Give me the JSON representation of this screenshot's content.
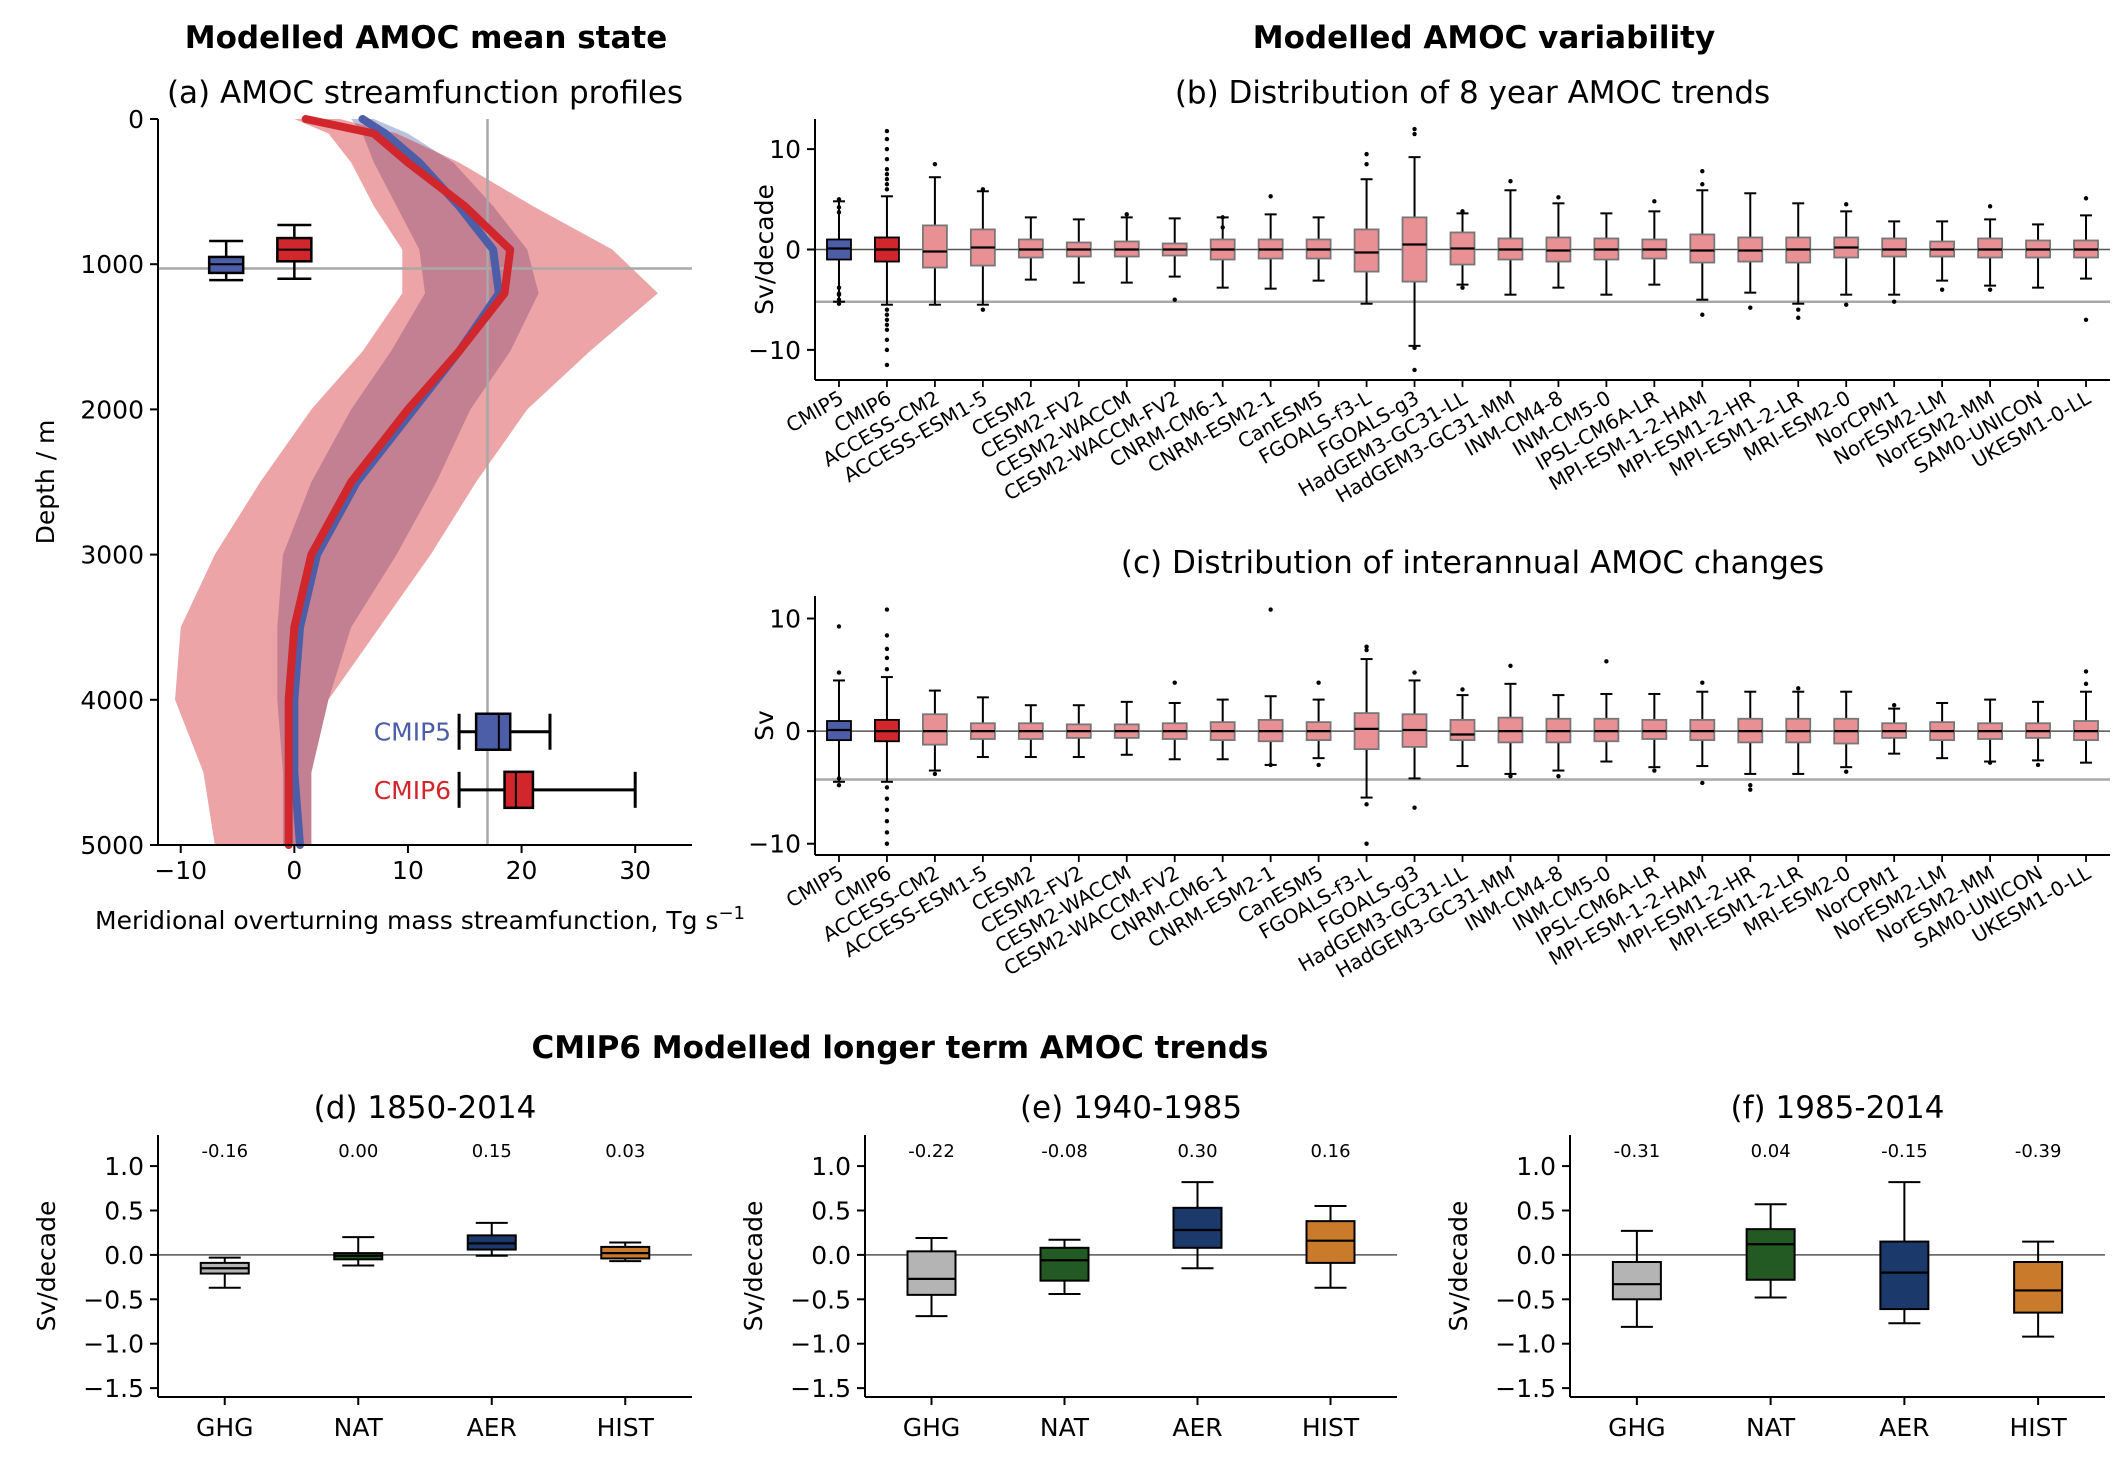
{
  "figure": {
    "heading_left": "Modelled AMOC mean state",
    "heading_right": "Modelled AMOC variability",
    "heading_bottom": "CMIP6 Modelled longer term AMOC trends"
  },
  "colors": {
    "cmip5": "#4c5ea8",
    "cmip6": "#d1262c",
    "model_box": "#e99095",
    "ghg": "#b4b4b4",
    "nat": "#235a24",
    "aer": "#1b3a6b",
    "hist": "#c97a2a"
  },
  "chart_data": [
    {
      "id": "a",
      "type": "line",
      "title": "(a) AMOC streamfunction profiles",
      "xlabel": "Meridional overturning mass streamfunction, Tg s",
      "xlabel_sup": "−1",
      "ylabel": "Depth / m",
      "xlim": [
        -12,
        35
      ],
      "ylim": [
        5000,
        0
      ],
      "xticks": [
        -10,
        0,
        10,
        20,
        30
      ],
      "yticks": [
        0,
        1000,
        2000,
        3000,
        4000,
        5000
      ],
      "reference_lines": {
        "x": 17,
        "y": 1030
      },
      "series": [
        {
          "name": "CMIP5",
          "depth": [
            0,
            100,
            300,
            600,
            900,
            1200,
            1600,
            2000,
            2500,
            3000,
            3500,
            4000,
            4500,
            5000
          ],
          "mean": [
            6,
            8,
            11,
            14.5,
            17.5,
            18,
            14.5,
            10.5,
            5.5,
            2,
            0.5,
            0,
            0,
            0.5
          ],
          "lower": [
            5,
            6,
            7,
            9,
            11,
            11.5,
            8.5,
            5,
            1.5,
            -1,
            -1.5,
            -1.5,
            -1,
            -1
          ],
          "upper": [
            7,
            10,
            14,
            17.5,
            20.5,
            21.5,
            19,
            15.5,
            12.5,
            9,
            5,
            3,
            1.5,
            1.5
          ]
        },
        {
          "name": "CMIP6",
          "depth": [
            0,
            100,
            300,
            600,
            900,
            1200,
            1600,
            2000,
            2500,
            3000,
            3500,
            4000,
            4500,
            5000
          ],
          "mean": [
            1,
            7,
            10,
            15,
            19,
            18.5,
            14.5,
            10,
            5,
            1.5,
            0,
            -0.5,
            -0.5,
            -0.5
          ],
          "lower": [
            0,
            3,
            5,
            7,
            9.5,
            9.5,
            6,
            1.5,
            -3,
            -7,
            -10,
            -10.5,
            -8,
            -7
          ],
          "upper": [
            4,
            9,
            14.5,
            21,
            28,
            32,
            26,
            20.5,
            16,
            12,
            7.5,
            3,
            1.5,
            1.5
          ]
        }
      ],
      "boxes_depth": [
        {
          "name": "CMIP5",
          "min": 840,
          "q1": 950,
          "median": 1000,
          "q3": 1060,
          "max": 1110,
          "x": -6
        },
        {
          "name": "CMIP6",
          "min": 730,
          "q1": 820,
          "median": 900,
          "q3": 980,
          "max": 1100,
          "x": 0
        }
      ],
      "boxes_strength": [
        {
          "name": "CMIP5",
          "min": 14.5,
          "q1": 16,
          "median": 18,
          "q3": 19,
          "max": 22.5,
          "depth": 4220
        },
        {
          "name": "CMIP6",
          "min": 14.5,
          "q1": 18.5,
          "median": 19.5,
          "q3": 21,
          "max": 30,
          "depth": 4620
        }
      ],
      "legend": [
        "CMIP5",
        "CMIP6"
      ]
    },
    {
      "id": "b",
      "type": "box",
      "title": "(b) Distribution of 8 year AMOC trends",
      "ylabel": "Sv/decade",
      "ylim": [
        -13,
        13
      ],
      "yticks": [
        -10,
        0,
        10
      ],
      "reference_line": -5.2,
      "categories": [
        "CMIP5",
        "CMIP6",
        "ACCESS-CM2",
        "ACCESS-ESM1-5",
        "CESM2",
        "CESM2-FV2",
        "CESM2-WACCM",
        "CESM2-WACCM-FV2",
        "CNRM-CM6-1",
        "CNRM-ESM2-1",
        "CanESM5",
        "FGOALS-f3-L",
        "FGOALS-g3",
        "HadGEM3-GC31-LL",
        "HadGEM3-GC31-MM",
        "INM-CM4-8",
        "INM-CM5-0",
        "IPSL-CM6A-LR",
        "MPI-ESM-1-2-HAM",
        "MPI-ESM1-2-HR",
        "MPI-ESM1-2-LR",
        "MRI-ESM2-0",
        "NorCPM1",
        "NorESM2-LM",
        "NorESM2-MM",
        "SAM0-UNICON",
        "UKESM1-0-LL"
      ],
      "q1": [
        -1.0,
        -1.2,
        -1.8,
        -1.6,
        -0.8,
        -0.7,
        -0.7,
        -0.6,
        -1.0,
        -0.9,
        -0.9,
        -2.2,
        -3.2,
        -1.5,
        -1.0,
        -1.2,
        -1.0,
        -0.9,
        -1.3,
        -1.2,
        -1.3,
        -0.8,
        -0.7,
        -0.7,
        -0.8,
        -0.8,
        -0.8
      ],
      "median": [
        0.1,
        0.0,
        -0.2,
        0.2,
        0.0,
        0.0,
        0.0,
        0.0,
        0.0,
        0.0,
        0.0,
        -0.3,
        0.5,
        0.1,
        0.0,
        -0.1,
        0.0,
        0.0,
        -0.1,
        -0.1,
        0.0,
        0.2,
        0.0,
        0.0,
        0.0,
        0.0,
        0.0
      ],
      "q3": [
        1.0,
        1.2,
        2.4,
        2.0,
        1.0,
        0.7,
        0.8,
        0.6,
        1.0,
        1.0,
        1.0,
        2.0,
        3.2,
        1.7,
        1.1,
        1.2,
        1.1,
        1.0,
        1.5,
        1.2,
        1.2,
        1.2,
        1.1,
        0.8,
        1.1,
        0.9,
        0.9
      ],
      "whislo": [
        -5.2,
        -5.5,
        -5.5,
        -5.5,
        -3.0,
        -3.3,
        -3.3,
        -2.7,
        -3.8,
        -3.9,
        -3.1,
        -5.4,
        -9.6,
        -3.5,
        -4.5,
        -3.8,
        -4.5,
        -3.5,
        -5.0,
        -4.3,
        -5.4,
        -4.5,
        -4.5,
        -3.1,
        -3.6,
        -3.8,
        -2.9
      ],
      "whishi": [
        4.8,
        5.3,
        7.2,
        5.8,
        3.2,
        3.0,
        3.2,
        3.1,
        3.2,
        3.5,
        3.2,
        7.0,
        9.2,
        3.6,
        5.9,
        4.6,
        3.6,
        3.8,
        5.9,
        5.6,
        4.6,
        3.8,
        2.8,
        2.8,
        3.0,
        2.5,
        3.4
      ],
      "outliers": [
        [
          -5.0,
          -4.4,
          -3.8,
          4.2,
          -4.5,
          5.0,
          -5.4,
          3.7
        ],
        [
          -6,
          -7,
          -8,
          -9,
          -10,
          -11.5,
          6,
          7,
          8,
          9,
          10,
          11,
          11.8,
          -6.5,
          6.5,
          -7.5,
          7.5
        ],
        [
          8.5
        ],
        [
          -6,
          6
        ],
        [],
        [],
        [
          3.5
        ],
        [
          -5
        ],
        [
          2.2,
          3.2
        ],
        [
          5.3
        ],
        [],
        [
          8.5,
          9.5
        ],
        [
          11.5,
          12,
          -9.8,
          -12
        ],
        [
          3.8,
          -3.8
        ],
        [
          6.8
        ],
        [
          5.2
        ],
        [],
        [
          4.8
        ],
        [
          7.8,
          6.5,
          -6.5
        ],
        [
          -5.8
        ],
        [
          -6,
          -6.8
        ],
        [
          4.5,
          -5.5
        ],
        [
          -5.2
        ],
        [
          -4
        ],
        [
          4.3,
          -4
        ],
        [],
        [
          5.1,
          -7
        ]
      ]
    },
    {
      "id": "c",
      "type": "box",
      "title": "(c) Distribution of interannual AMOC changes",
      "ylabel": "Sv",
      "ylim": [
        -11,
        12
      ],
      "yticks": [
        -10,
        0,
        10
      ],
      "reference_line": -4.3,
      "categories": [
        "CMIP5",
        "CMIP6",
        "ACCESS-CM2",
        "ACCESS-ESM1-5",
        "CESM2",
        "CESM2-FV2",
        "CESM2-WACCM",
        "CESM2-WACCM-FV2",
        "CNRM-CM6-1",
        "CNRM-ESM2-1",
        "CanESM5",
        "FGOALS-f3-L",
        "FGOALS-g3",
        "HadGEM3-GC31-LL",
        "HadGEM3-GC31-MM",
        "INM-CM4-8",
        "INM-CM5-0",
        "IPSL-CM6A-LR",
        "MPI-ESM-1-2-HAM",
        "MPI-ESM1-2-HR",
        "MPI-ESM1-2-LR",
        "MRI-ESM2-0",
        "NorCPM1",
        "NorESM2-LM",
        "NorESM2-MM",
        "SAM0-UNICON",
        "UKESM1-0-LL"
      ],
      "q1": [
        -0.8,
        -0.9,
        -1.2,
        -0.7,
        -0.7,
        -0.6,
        -0.6,
        -0.7,
        -0.8,
        -0.9,
        -0.8,
        -1.6,
        -1.4,
        -0.8,
        -1.0,
        -1.0,
        -0.9,
        -0.7,
        -0.8,
        -1.0,
        -1.0,
        -1.1,
        -0.6,
        -0.8,
        -0.7,
        -0.6,
        -0.8
      ],
      "median": [
        0.1,
        0.0,
        0.0,
        0.0,
        0.0,
        0.0,
        0.0,
        0.0,
        0.0,
        0.0,
        0.0,
        0.2,
        0.1,
        -0.3,
        0.0,
        0.0,
        0.0,
        0.0,
        0.0,
        0.0,
        0.0,
        0.0,
        0.0,
        0.0,
        0.0,
        0.0,
        0.0
      ],
      "q3": [
        0.9,
        1.0,
        1.5,
        0.7,
        0.7,
        0.6,
        0.6,
        0.7,
        0.8,
        1.0,
        0.8,
        1.6,
        1.5,
        1.0,
        1.2,
        1.1,
        1.1,
        1.0,
        1.0,
        1.1,
        1.1,
        1.1,
        0.7,
        0.8,
        0.7,
        0.7,
        0.9
      ],
      "whislo": [
        -4.5,
        -4.5,
        -3.5,
        -2.3,
        -2.3,
        -2.3,
        -2.1,
        -2.5,
        -2.5,
        -3.0,
        -2.4,
        -5.9,
        -4.2,
        -3.1,
        -3.8,
        -3.5,
        -2.7,
        -3.2,
        -3.1,
        -3.8,
        -3.8,
        -3.2,
        -2.0,
        -2.4,
        -2.7,
        -2.6,
        -2.8
      ],
      "whishi": [
        4.5,
        4.8,
        3.6,
        3.0,
        2.3,
        2.3,
        2.6,
        2.5,
        2.8,
        3.1,
        2.8,
        6.4,
        4.5,
        3.2,
        4.2,
        3.2,
        3.3,
        3.3,
        3.5,
        3.5,
        3.5,
        3.5,
        2.0,
        2.5,
        2.8,
        2.6,
        3.5
      ],
      "outliers": [
        [
          9.3,
          -4.8,
          5.2,
          -4.2
        ],
        [
          -5,
          -6,
          -7,
          -8,
          -10,
          5.5,
          6.5,
          7.3,
          8.5,
          10.8,
          -9
        ],
        [
          -3.8
        ],
        [],
        [],
        [],
        [],
        [
          4.3
        ],
        [],
        [
          10.8,
          -3
        ],
        [
          4.3,
          -3
        ],
        [
          7.2,
          -6.5,
          -10,
          7.5
        ],
        [
          -6.8,
          5.2
        ],
        [
          3.7
        ],
        [
          5.8,
          -4
        ],
        [
          -4
        ],
        [
          6.2
        ],
        [
          -3.5
        ],
        [
          4.3,
          -4.6
        ],
        [
          -4.8,
          -5.2
        ],
        [
          3.8
        ],
        [
          -3.6
        ],
        [
          2.3
        ],
        [],
        [
          -2.8
        ],
        [
          -3
        ],
        [
          5.3,
          4.2
        ]
      ]
    },
    {
      "id": "d",
      "type": "box",
      "title": "(d) 1850-2014",
      "ylabel": "Sv/decade",
      "ylim": [
        -1.6,
        1.35
      ],
      "yticks": [
        1.0,
        0.5,
        0.0,
        -0.5,
        -1.0,
        -1.5
      ],
      "categories": [
        "GHG",
        "NAT",
        "AER",
        "HIST"
      ],
      "annotations": [
        "-0.16",
        "0.00",
        "0.15",
        "0.03"
      ],
      "q1": [
        -0.21,
        -0.05,
        0.06,
        -0.04
      ],
      "median": [
        -0.15,
        -0.01,
        0.13,
        0.02
      ],
      "q3": [
        -0.09,
        0.02,
        0.22,
        0.09
      ],
      "whislo": [
        -0.37,
        -0.12,
        -0.01,
        -0.07
      ],
      "whishi": [
        -0.03,
        0.2,
        0.36,
        0.14
      ]
    },
    {
      "id": "e",
      "type": "box",
      "title": "(e) 1940-1985",
      "ylabel": "Sv/decade",
      "ylim": [
        -1.6,
        1.35
      ],
      "yticks": [
        1.0,
        0.5,
        0.0,
        -0.5,
        -1.0,
        -1.5
      ],
      "categories": [
        "GHG",
        "NAT",
        "AER",
        "HIST"
      ],
      "annotations": [
        "-0.22",
        "-0.08",
        "0.30",
        "0.16"
      ],
      "q1": [
        -0.45,
        -0.29,
        0.08,
        -0.09
      ],
      "median": [
        -0.27,
        -0.06,
        0.28,
        0.16
      ],
      "q3": [
        0.04,
        0.08,
        0.53,
        0.38
      ],
      "whislo": [
        -0.69,
        -0.44,
        -0.15,
        -0.37
      ],
      "whishi": [
        0.19,
        0.17,
        0.82,
        0.55
      ]
    },
    {
      "id": "f",
      "type": "box",
      "title": "(f) 1985-2014",
      "ylabel": "Sv/decade",
      "ylim": [
        -1.6,
        1.35
      ],
      "yticks": [
        1.0,
        0.5,
        0.0,
        -0.5,
        -1.0,
        -1.5
      ],
      "categories": [
        "GHG",
        "NAT",
        "AER",
        "HIST"
      ],
      "annotations": [
        "-0.31",
        "0.04",
        "-0.15",
        "-0.39"
      ],
      "q1": [
        -0.5,
        -0.28,
        -0.61,
        -0.65
      ],
      "median": [
        -0.33,
        0.12,
        -0.2,
        -0.4
      ],
      "q3": [
        -0.08,
        0.29,
        0.15,
        -0.08
      ],
      "whislo": [
        -0.81,
        -0.48,
        -0.77,
        -0.92
      ],
      "whishi": [
        0.27,
        0.57,
        0.82,
        0.15
      ]
    }
  ]
}
